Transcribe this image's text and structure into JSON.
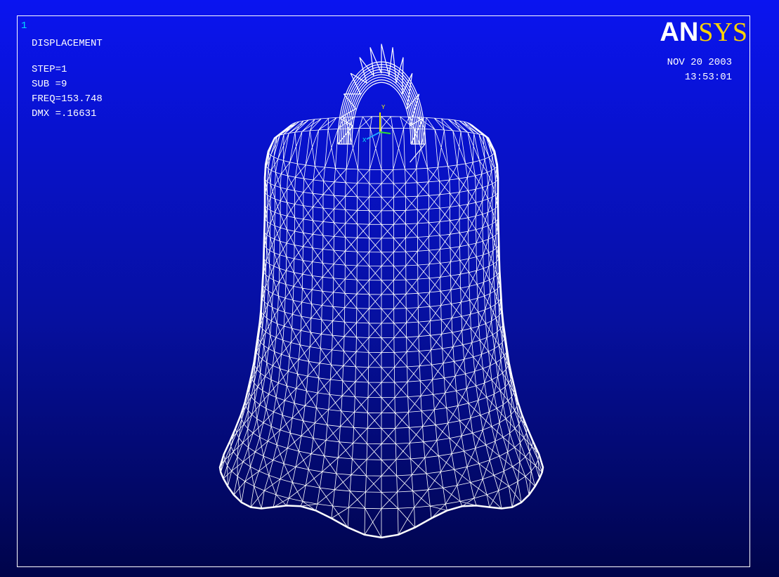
{
  "window": {
    "number": "1"
  },
  "legend": {
    "title": "DISPLACEMENT",
    "lines": [
      "STEP=1",
      "SUB =9",
      "FREQ=153.748",
      "DMX =.16631"
    ]
  },
  "logo": {
    "left": "AN",
    "right": "SYS"
  },
  "timestamp": {
    "date": "NOV 20 2003",
    "time": "13:53:01"
  },
  "triad": {
    "y": "Y",
    "x": "X"
  }
}
